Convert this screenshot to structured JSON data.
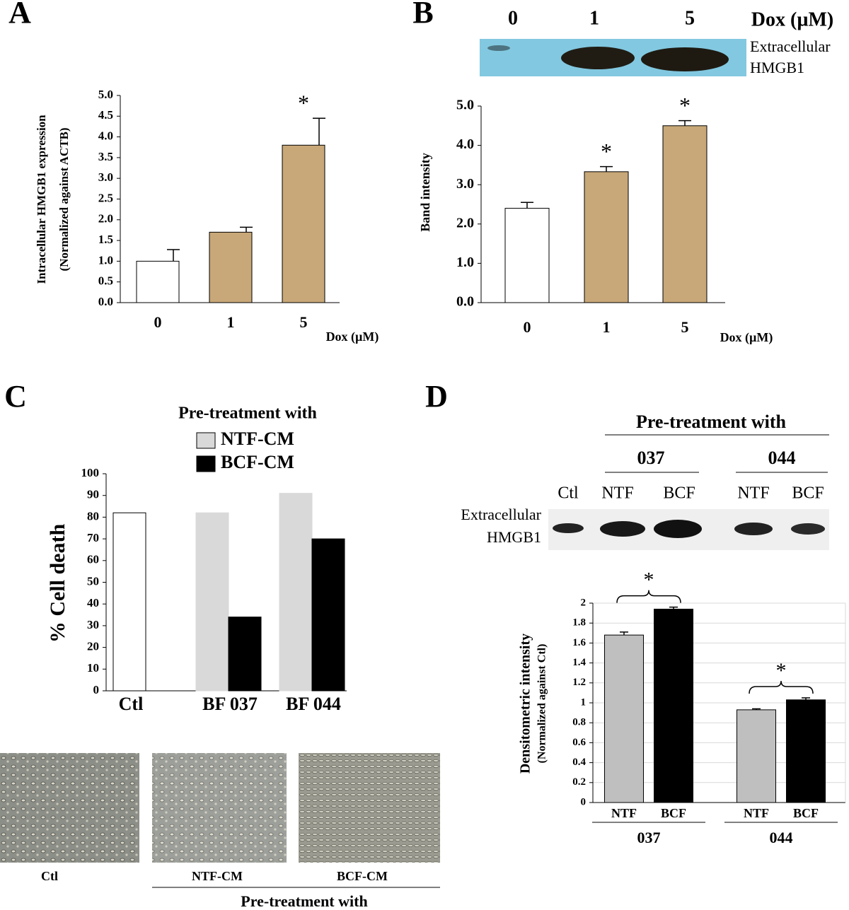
{
  "panels": [
    "A",
    "B",
    "C",
    "D"
  ],
  "chart_data": [
    {
      "type": "bar",
      "ylabel": [
        "Intracellular HMGB1 expression",
        "(Normalized against ACTB)"
      ],
      "xlabel": "Dox (µM)",
      "categories": [
        "0",
        "1",
        "5"
      ],
      "values": [
        1.0,
        1.7,
        3.8
      ],
      "errors": [
        0.28,
        0.12,
        0.65
      ],
      "colors": [
        "#ffffff",
        "#c8a878",
        "#c8a878"
      ],
      "significance": [
        null,
        null,
        "*"
      ],
      "ylim": [
        0,
        5
      ],
      "yticks": [
        {
          "value": 0,
          "label": "0.0"
        },
        0.5,
        {
          "value": 1,
          "label": "1.0"
        },
        1.5,
        {
          "value": 2,
          "label": "2.0"
        },
        2.5,
        {
          "value": 3,
          "label": "3.0"
        },
        3.5,
        {
          "value": 4,
          "label": "4.0"
        },
        4.5,
        {
          "value": 5,
          "label": "5.0"
        }
      ]
    },
    {
      "type": "bar",
      "ylabel": "Band intensity",
      "xlabel": "Dox (µM)",
      "categories": [
        "0",
        "1",
        "5"
      ],
      "values": [
        2.4,
        3.33,
        4.5
      ],
      "errors": [
        0.15,
        0.13,
        0.13
      ],
      "colors": [
        "#ffffff",
        "#c8a878",
        "#c8a878"
      ],
      "significance": [
        null,
        "*",
        "*"
      ],
      "ylim": [
        0,
        5
      ],
      "yticks": [
        {
          "value": 0,
          "label": "0.0"
        },
        {
          "value": 1,
          "label": "1.0"
        },
        {
          "value": 2,
          "label": "2.0"
        },
        {
          "value": 3,
          "label": "3.0"
        },
        {
          "value": 4,
          "label": "4.0"
        },
        {
          "value": 5,
          "label": "5.0"
        }
      ]
    },
    {
      "type": "grouped_bar",
      "ylabel": "% Cell death",
      "legend_title": "Pre-treatment with",
      "categories": [
        "Ctl",
        "BF 037",
        "BF 044"
      ],
      "values": [
        82,
        null,
        null
      ],
      "color": "#ffffff",
      "series": [
        {
          "name": "NTF-CM",
          "color": "#d9d9d9",
          "values": [
            null,
            82,
            91
          ]
        },
        {
          "name": "BCF-CM",
          "color": "#000000",
          "values": [
            null,
            34,
            70
          ]
        }
      ],
      "ylim": [
        0,
        100
      ],
      "yticks": [
        0,
        10,
        20,
        30,
        40,
        50,
        60,
        70,
        80,
        90,
        100
      ]
    },
    {
      "type": "paired_bar",
      "ylabel": [
        "Densitometric intensity",
        "(Normalized against Ctl)"
      ],
      "categories": [
        "NTF",
        "BCF",
        "NTF",
        "BCF"
      ],
      "groups": [
        "037",
        "044"
      ],
      "values": [
        1.68,
        1.94,
        0.93,
        1.03
      ],
      "errors": [
        0.03,
        0.02,
        0.01,
        0.02
      ],
      "colors": [
        "#bfbfbf",
        "#000000",
        "#bfbfbf",
        "#000000"
      ],
      "significance": [
        "*",
        "*"
      ],
      "ylim": [
        0,
        2
      ],
      "yticks": [
        0,
        0.2,
        0.4,
        0.6,
        0.8,
        1,
        1.2,
        1.4,
        1.6,
        1.8,
        2
      ],
      "grid": true
    }
  ],
  "blot_b": {
    "lanes": [
      "0",
      "1",
      "5"
    ],
    "unit": "Dox (µM)",
    "label": [
      "Extracellular",
      "HMGB1"
    ]
  },
  "blot_d": {
    "heading": "Pre-treatment with",
    "groups": [
      "037",
      "044"
    ],
    "lanes": [
      "Ctl",
      "NTF",
      "BCF",
      "NTF",
      "BCF"
    ],
    "label": [
      "Extracellular",
      "HMGB1"
    ]
  },
  "micrographs": {
    "labels": [
      "Ctl",
      "NTF-CM",
      "BCF-CM"
    ],
    "heading": "Pre-treatment with"
  }
}
